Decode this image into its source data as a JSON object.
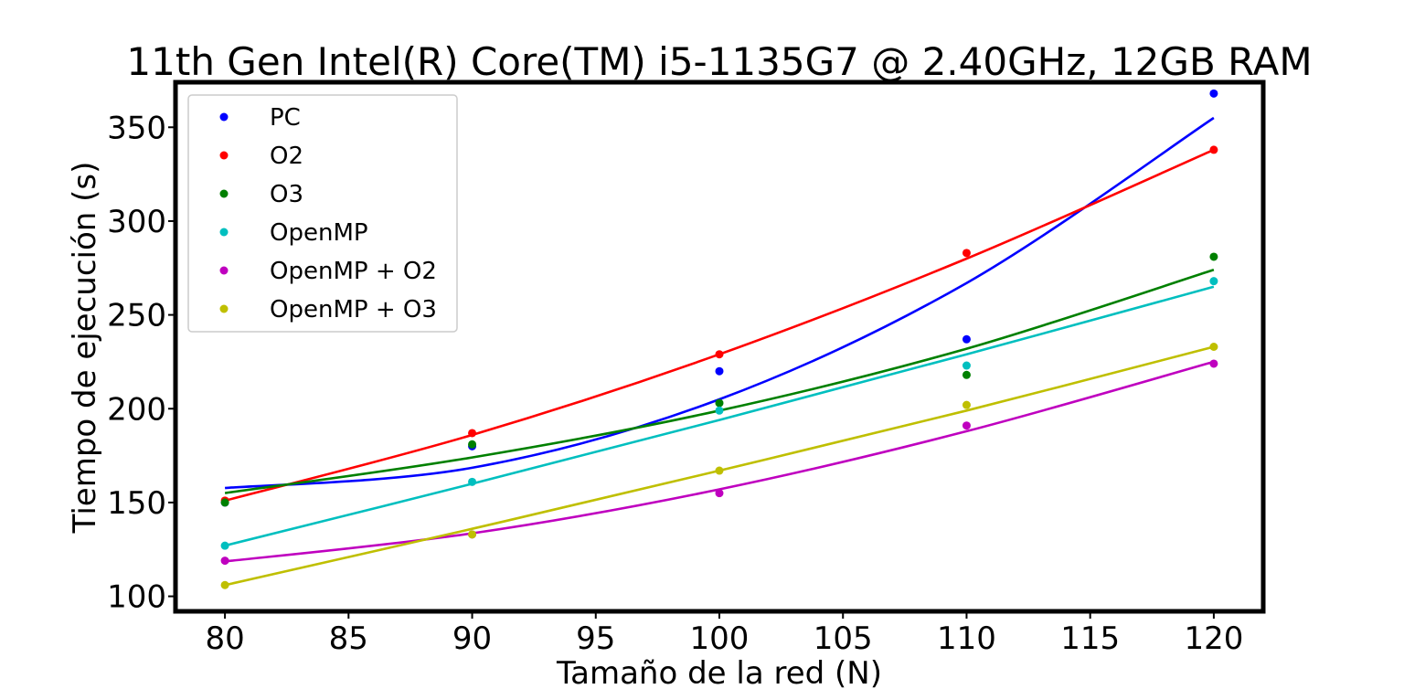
{
  "chart_data": {
    "type": "scatter",
    "title": "11th Gen Intel(R) Core(TM) i5-1135G7 @ 2.40GHz, 12GB RAM",
    "xlabel": "Tamaño de la red (N)",
    "ylabel": "Tiempo de ejecución (s)",
    "xlim": [
      78,
      122
    ],
    "ylim": [
      92,
      374
    ],
    "xticks": [
      80,
      85,
      90,
      95,
      100,
      105,
      110,
      115,
      120
    ],
    "yticks": [
      100,
      150,
      200,
      250,
      300,
      350
    ],
    "grid": false,
    "legend_position": "upper-left",
    "x": [
      80,
      90,
      100,
      110,
      120
    ],
    "series": [
      {
        "name": "PC",
        "color": "#0000ff",
        "values": [
          150,
          180,
          220,
          237,
          368
        ],
        "fit": [
          [
            80,
            157.7
          ],
          [
            90,
            168.5
          ],
          [
            100,
            205
          ],
          [
            110,
            267
          ],
          [
            120,
            355
          ]
        ]
      },
      {
        "name": "O2",
        "color": "#ff0000",
        "values": [
          151,
          187,
          229,
          283,
          338
        ],
        "fit": [
          [
            80,
            151
          ],
          [
            90,
            186
          ],
          [
            100,
            229
          ],
          [
            110,
            280
          ],
          [
            120,
            338
          ]
        ]
      },
      {
        "name": "O3",
        "color": "#008000",
        "values": [
          150,
          181,
          203,
          218,
          281
        ],
        "fit": [
          [
            80,
            155
          ],
          [
            90,
            174
          ],
          [
            100,
            199
          ],
          [
            110,
            232
          ],
          [
            120,
            274
          ]
        ]
      },
      {
        "name": "OpenMP",
        "color": "#00bfbf",
        "values": [
          127,
          161,
          199,
          223,
          268
        ],
        "fit": [
          [
            80,
            127
          ],
          [
            90,
            160
          ],
          [
            100,
            194
          ],
          [
            110,
            229
          ],
          [
            120,
            265
          ]
        ]
      },
      {
        "name": "OpenMP + O2",
        "color": "#bf00bf",
        "values": [
          119,
          133,
          155,
          191,
          224
        ],
        "fit": [
          [
            80,
            118.6
          ],
          [
            90,
            133.6
          ],
          [
            100,
            157
          ],
          [
            110,
            188
          ],
          [
            120,
            225
          ]
        ]
      },
      {
        "name": "OpenMP + O3",
        "color": "#bfbf00",
        "values": [
          106,
          133,
          167,
          202,
          233
        ],
        "fit": [
          [
            80,
            106
          ],
          [
            90,
            136
          ],
          [
            100,
            167
          ],
          [
            110,
            199
          ],
          [
            120,
            233
          ]
        ]
      }
    ]
  }
}
